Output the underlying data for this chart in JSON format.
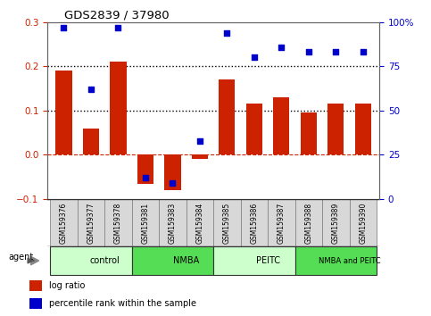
{
  "title": "GDS2839 / 37980",
  "samples": [
    "GSM159376",
    "GSM159377",
    "GSM159378",
    "GSM159381",
    "GSM159383",
    "GSM159384",
    "GSM159385",
    "GSM159386",
    "GSM159387",
    "GSM159388",
    "GSM159389",
    "GSM159390"
  ],
  "log_ratio": [
    0.19,
    0.06,
    0.21,
    -0.065,
    -0.08,
    -0.01,
    0.17,
    0.115,
    0.13,
    0.095,
    0.115,
    0.115
  ],
  "percentile_rank": [
    97,
    62,
    97,
    12,
    9,
    33,
    94,
    80,
    86,
    83,
    83,
    83
  ],
  "ylim_left": [
    -0.1,
    0.3
  ],
  "ylim_right": [
    0,
    100
  ],
  "yticks_left": [
    -0.1,
    0.0,
    0.1,
    0.2,
    0.3
  ],
  "yticks_right": [
    0,
    25,
    50,
    75,
    100
  ],
  "ytick_labels_right": [
    "0",
    "25",
    "50",
    "75",
    "100%"
  ],
  "bar_color": "#CC2200",
  "dot_color": "#0000CC",
  "zero_line_color": "#CC2200",
  "dotted_line_color": "#000000",
  "groups": [
    {
      "label": "control",
      "start": 0,
      "end": 3,
      "color": "#ccffcc"
    },
    {
      "label": "NMBA",
      "start": 3,
      "end": 6,
      "color": "#55dd55"
    },
    {
      "label": "PEITC",
      "start": 6,
      "end": 9,
      "color": "#ccffcc"
    },
    {
      "label": "NMBA and PEITC",
      "start": 9,
      "end": 12,
      "color": "#55dd55"
    }
  ],
  "legend_bar_color": "#CC2200",
  "legend_dot_color": "#0000CC",
  "legend_bar_label": "log ratio",
  "legend_dot_label": "percentile rank within the sample",
  "agent_label": "agent",
  "background_color": "#ffffff",
  "plot_bg_color": "#ffffff",
  "tick_label_color_left": "#CC2200",
  "tick_label_color_right": "#0000CC",
  "sample_box_color": "#d8d8d8",
  "sample_box_edge": "#888888"
}
